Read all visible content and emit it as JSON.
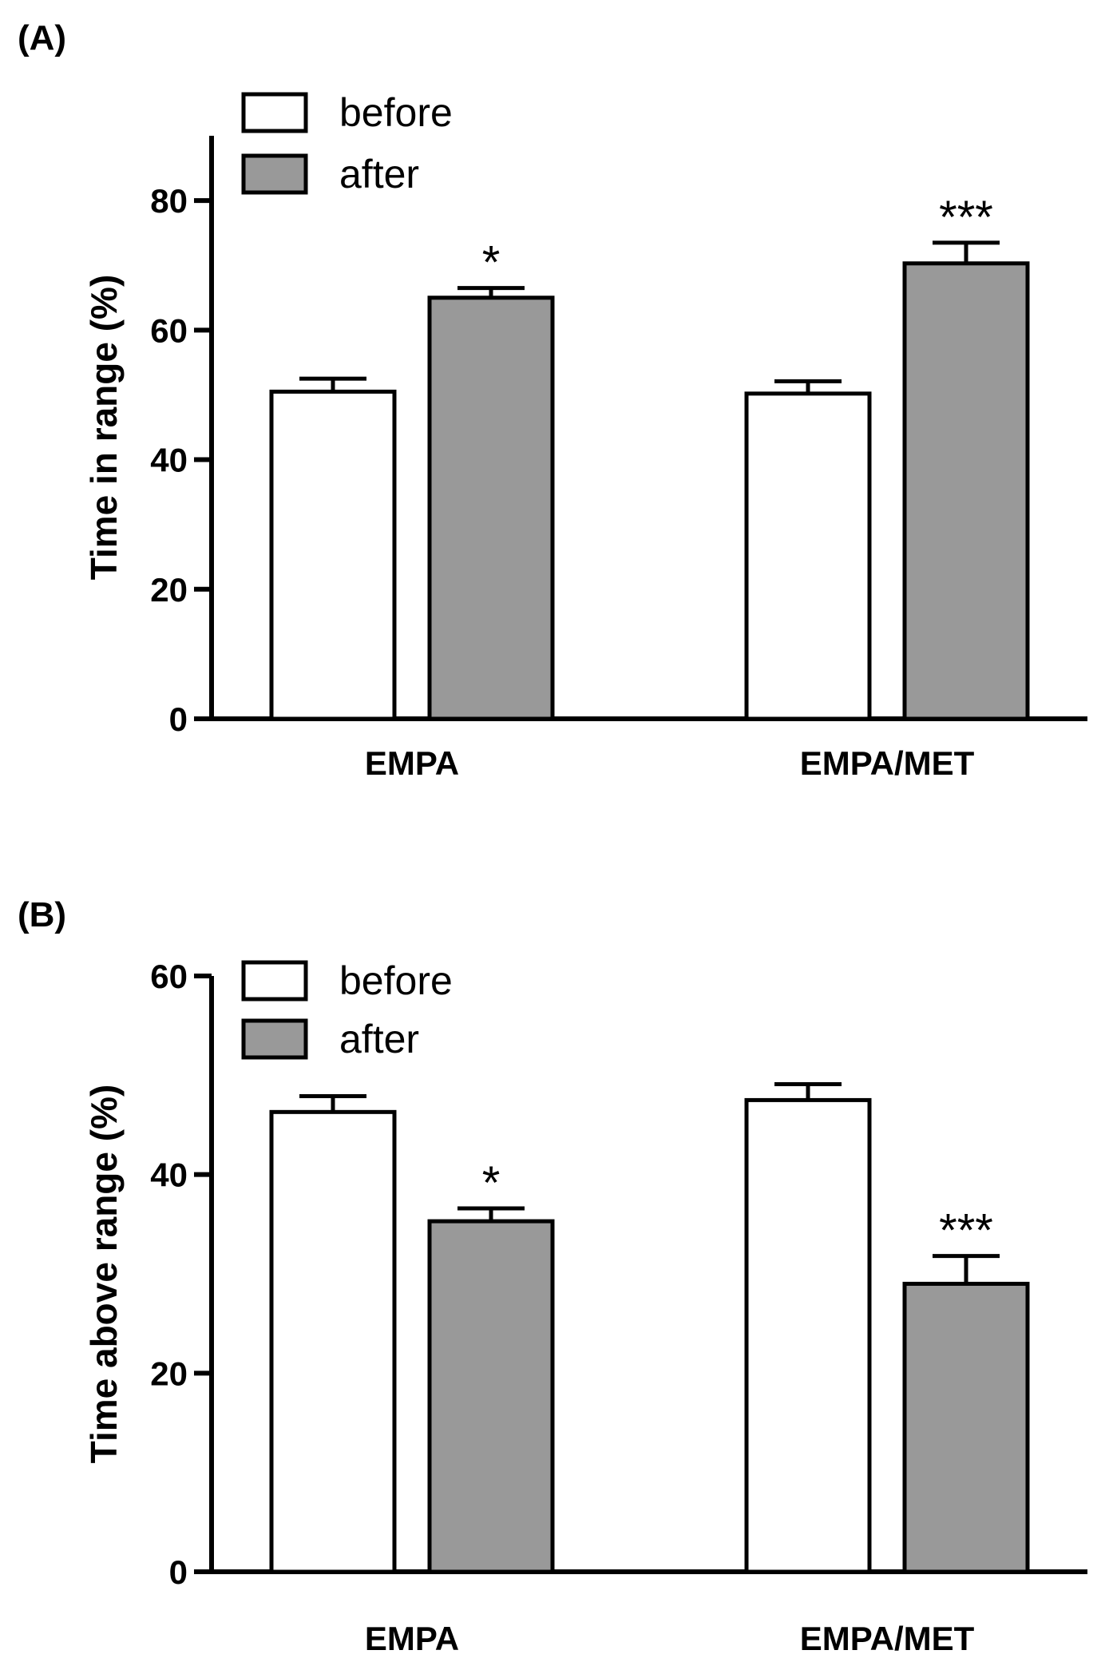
{
  "colors": {
    "before": "#ffffff",
    "after": "#999999",
    "stroke": "#000000"
  },
  "chart_data": [
    {
      "type": "bar",
      "panel_label": "(A)",
      "ylabel": "Time in range (%)",
      "xlabel": "",
      "ylim": [
        0,
        90
      ],
      "yticks": [
        0,
        20,
        40,
        60,
        80
      ],
      "ytick_labels": [
        "0",
        "20",
        "40",
        "60",
        "80"
      ],
      "categories": [
        "EMPA",
        "EMPA/MET"
      ],
      "legend": [
        "before",
        "after"
      ],
      "legend_position": "top-left",
      "series": [
        {
          "name": "before",
          "values": [
            50.5,
            50.2
          ],
          "errors": [
            2.0,
            1.9
          ],
          "significance": [
            "",
            ""
          ]
        },
        {
          "name": "after",
          "values": [
            65.0,
            70.3
          ],
          "errors": [
            1.5,
            3.2
          ],
          "significance": [
            "*",
            "***"
          ]
        }
      ]
    },
    {
      "type": "bar",
      "panel_label": "(B)",
      "ylabel": "Time above range (%)",
      "xlabel": "",
      "ylim": [
        0,
        60
      ],
      "yticks": [
        0,
        20,
        40,
        60
      ],
      "ytick_labels": [
        "0",
        "20",
        "40",
        "60"
      ],
      "categories": [
        "EMPA",
        "EMPA/MET"
      ],
      "legend": [
        "before",
        "after"
      ],
      "legend_position": "top-left",
      "series": [
        {
          "name": "before",
          "values": [
            46.3,
            47.5
          ],
          "errors": [
            1.6,
            1.6
          ],
          "significance": [
            "",
            ""
          ]
        },
        {
          "name": "after",
          "values": [
            35.3,
            29.0
          ],
          "errors": [
            1.3,
            2.8
          ],
          "significance": [
            "*",
            "***"
          ]
        }
      ]
    }
  ]
}
